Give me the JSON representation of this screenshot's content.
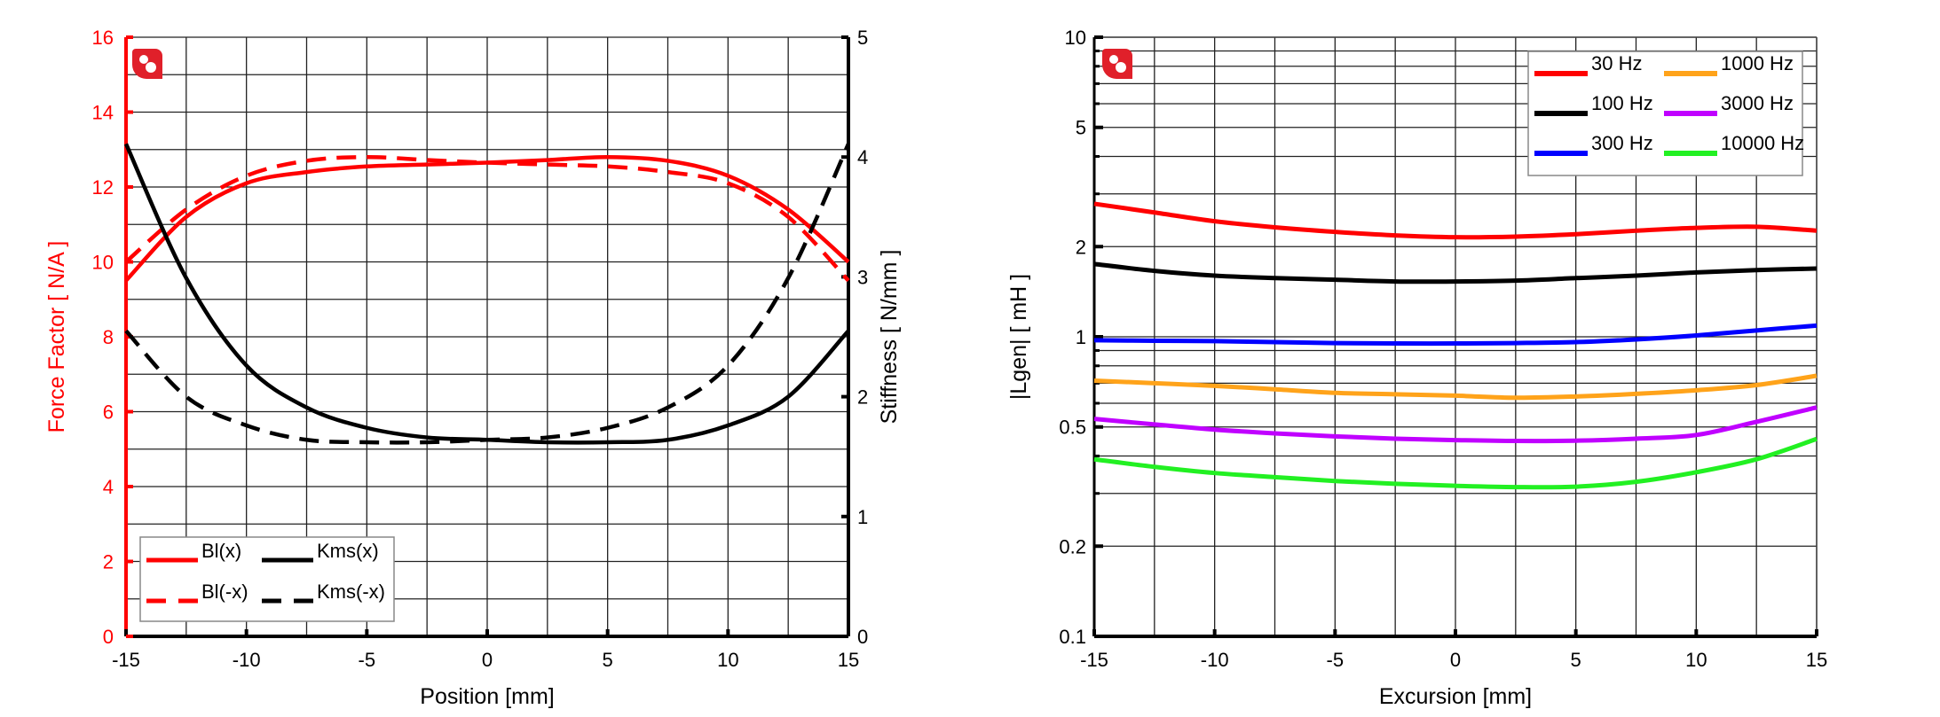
{
  "chart_data": [
    {
      "type": "line",
      "xlabel": "Position [mm]",
      "ylabel": "Force Factor [ N/A ]",
      "y2label": "Stiffness [ N/mm ]",
      "xlim": [
        -15,
        15
      ],
      "ylim": [
        0,
        16
      ],
      "y2lim": [
        0,
        5
      ],
      "xticks": [
        -15,
        -10,
        -5,
        0,
        5,
        10,
        15
      ],
      "yticks": [
        0,
        2,
        4,
        6,
        8,
        10,
        12,
        14,
        16
      ],
      "y2ticks": [
        0,
        1,
        2,
        3,
        4,
        5
      ],
      "grid": true,
      "legend_position": "bottom-left",
      "x": [
        -15,
        -12.5,
        -10,
        -7.5,
        -5,
        -2.5,
        0,
        2.5,
        5,
        7.5,
        10,
        12.5,
        15
      ],
      "series": [
        {
          "name": "Bl(x)",
          "axis": "left",
          "color": "#ff0000",
          "dash": false,
          "values": [
            9.5,
            11.2,
            12.1,
            12.4,
            12.55,
            12.6,
            12.65,
            12.72,
            12.8,
            12.7,
            12.3,
            11.4,
            10.0
          ]
        },
        {
          "name": "Bl(-x)",
          "axis": "left",
          "color": "#ff0000",
          "dash": true,
          "values": [
            10.0,
            11.4,
            12.3,
            12.7,
            12.8,
            12.72,
            12.65,
            12.6,
            12.55,
            12.4,
            12.1,
            11.2,
            9.5
          ]
        },
        {
          "name": "Kms(x)",
          "axis": "right",
          "color": "#000000",
          "dash": false,
          "values": [
            4.11,
            2.99,
            2.26,
            1.91,
            1.74,
            1.66,
            1.64,
            1.62,
            1.62,
            1.64,
            1.76,
            2.0,
            2.55
          ]
        },
        {
          "name": "Kms(-x)",
          "axis": "right",
          "color": "#000000",
          "dash": true,
          "values": [
            2.55,
            2.0,
            1.76,
            1.64,
            1.62,
            1.62,
            1.64,
            1.66,
            1.74,
            1.91,
            2.26,
            2.99,
            4.11
          ]
        }
      ]
    },
    {
      "type": "line",
      "xlabel": "Excursion [mm]",
      "ylabel": "|Lgen| [ mH ]",
      "xlim": [
        -15,
        15
      ],
      "ylim": [
        0.1,
        10
      ],
      "yscale": "log",
      "xticks": [
        -15,
        -10,
        -5,
        0,
        5,
        10,
        15
      ],
      "yticks": [
        0.1,
        0.2,
        0.5,
        1,
        2,
        5,
        10
      ],
      "ytick_labels": [
        "0.1",
        "0.2",
        "0.5",
        "1",
        "2",
        "5",
        "10"
      ],
      "grid": true,
      "legend_position": "top-right",
      "x": [
        -15,
        -12.5,
        -10,
        -7.5,
        -5,
        -2.5,
        0,
        2.5,
        5,
        7.5,
        10,
        12.5,
        15
      ],
      "series": [
        {
          "name": "30 Hz",
          "color": "#ff0000",
          "values": [
            2.78,
            2.6,
            2.43,
            2.32,
            2.24,
            2.18,
            2.15,
            2.16,
            2.2,
            2.26,
            2.31,
            2.33,
            2.26
          ]
        },
        {
          "name": "100 Hz",
          "color": "#000000",
          "values": [
            1.75,
            1.66,
            1.6,
            1.57,
            1.55,
            1.53,
            1.53,
            1.54,
            1.57,
            1.6,
            1.64,
            1.67,
            1.69
          ]
        },
        {
          "name": "300 Hz",
          "color": "#0000ff",
          "values": [
            0.974,
            0.97,
            0.967,
            0.96,
            0.953,
            0.95,
            0.95,
            0.953,
            0.96,
            0.98,
            1.01,
            1.05,
            1.09
          ]
        },
        {
          "name": "1000 Hz",
          "color": "#ffa31a",
          "values": [
            0.714,
            0.7,
            0.686,
            0.668,
            0.65,
            0.643,
            0.636,
            0.626,
            0.632,
            0.645,
            0.663,
            0.69,
            0.741
          ]
        },
        {
          "name": "3000 Hz",
          "color": "#c000ff",
          "values": [
            0.532,
            0.51,
            0.49,
            0.476,
            0.465,
            0.457,
            0.452,
            0.449,
            0.45,
            0.457,
            0.47,
            0.52,
            0.581
          ]
        },
        {
          "name": "10000 Hz",
          "color": "#22f022",
          "values": [
            0.39,
            0.368,
            0.351,
            0.34,
            0.33,
            0.323,
            0.318,
            0.315,
            0.316,
            0.328,
            0.353,
            0.39,
            0.456
          ]
        }
      ]
    }
  ],
  "colors": {
    "logo": "#e0202a",
    "left_axis": "#ff0000",
    "grid": "#000000"
  },
  "icons": {
    "logo": "brand-logo-icon"
  }
}
